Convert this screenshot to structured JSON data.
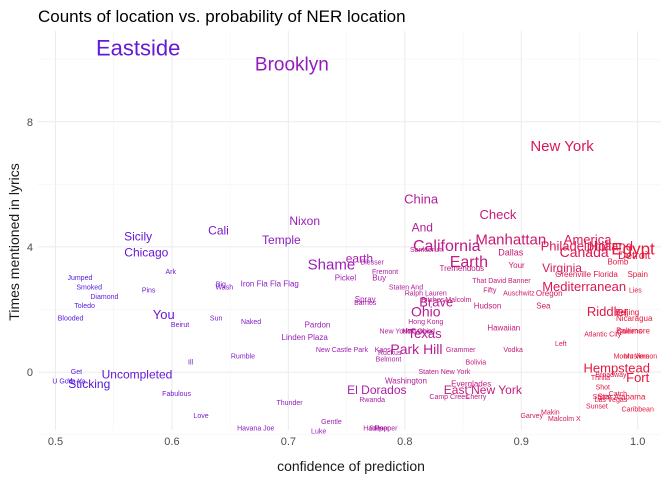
{
  "chart_data": {
    "type": "scatter",
    "title": "Counts of location vs. probability of NER location",
    "xlabel": "confidence of prediction",
    "ylabel": "Times mentioned in lyrics",
    "xlim": [
      0.485,
      1.02
    ],
    "ylim": [
      -1.85,
      10.9
    ],
    "x_ticks": [
      0.5,
      0.6,
      0.7,
      0.8,
      0.9,
      1.0
    ],
    "x_tick_labels": [
      "0.5",
      "0.6",
      "0.7",
      "0.8",
      "0.9",
      "1.0"
    ],
    "y_ticks": [
      0,
      4,
      8
    ],
    "y_tick_labels": [
      "0",
      "4",
      "8"
    ],
    "grid": true,
    "legend": "none",
    "color_scale": {
      "low": "#4b16e0",
      "mid": "#a31fb4",
      "high": "#e8173a"
    },
    "points": [
      {
        "label": "Eastside",
        "x": 0.571,
        "y": 10.3,
        "size": 22
      },
      {
        "label": "Brooklyn",
        "x": 0.703,
        "y": 9.8,
        "size": 19
      },
      {
        "label": "New York",
        "x": 0.935,
        "y": 7.2,
        "size": 15
      },
      {
        "label": "China",
        "x": 0.814,
        "y": 5.5,
        "size": 13
      },
      {
        "label": "Check",
        "x": 0.88,
        "y": 5.0,
        "size": 13
      },
      {
        "label": "Nixon",
        "x": 0.714,
        "y": 4.8,
        "size": 12
      },
      {
        "label": "Cali",
        "x": 0.64,
        "y": 4.5,
        "size": 12
      },
      {
        "label": "And",
        "x": 0.815,
        "y": 4.6,
        "size": 12
      },
      {
        "label": "Sicily",
        "x": 0.571,
        "y": 4.3,
        "size": 12
      },
      {
        "label": "Temple",
        "x": 0.694,
        "y": 4.2,
        "size": 12
      },
      {
        "label": "Manhattan",
        "x": 0.891,
        "y": 4.2,
        "size": 15
      },
      {
        "label": "America",
        "x": 0.957,
        "y": 4.2,
        "size": 13
      },
      {
        "label": "California",
        "x": 0.836,
        "y": 4.0,
        "size": 16
      },
      {
        "label": "Philadelphia",
        "x": 0.947,
        "y": 4.0,
        "size": 13
      },
      {
        "label": "Holland",
        "x": 0.977,
        "y": 4.0,
        "size": 13
      },
      {
        "label": "Egypt",
        "x": 0.996,
        "y": 3.9,
        "size": 17
      },
      {
        "label": "Canada",
        "x": 0.954,
        "y": 3.8,
        "size": 14
      },
      {
        "label": "Chicago",
        "x": 0.578,
        "y": 3.8,
        "size": 12
      },
      {
        "label": "Dallas",
        "x": 0.891,
        "y": 3.8,
        "size": 9
      },
      {
        "label": "Detroit",
        "x": 0.997,
        "y": 3.7,
        "size": 11
      },
      {
        "label": "Earth",
        "x": 0.855,
        "y": 3.5,
        "size": 16
      },
      {
        "label": "Shame",
        "x": 0.737,
        "y": 3.4,
        "size": 15
      },
      {
        "label": "earth",
        "x": 0.761,
        "y": 3.6,
        "size": 12
      },
      {
        "label": "Sanktorum",
        "x": 0.819,
        "y": 3.9,
        "size": 7
      },
      {
        "label": "Blesser",
        "x": 0.772,
        "y": 3.5,
        "size": 7
      },
      {
        "label": "Bomb",
        "x": 0.983,
        "y": 3.5,
        "size": 8
      },
      {
        "label": "Your",
        "x": 0.896,
        "y": 3.4,
        "size": 8
      },
      {
        "label": "Virginia",
        "x": 0.935,
        "y": 3.3,
        "size": 12
      },
      {
        "label": "Fremont",
        "x": 0.783,
        "y": 3.2,
        "size": 7
      },
      {
        "label": "Ark",
        "x": 0.599,
        "y": 3.2,
        "size": 7
      },
      {
        "label": "Tremendous",
        "x": 0.849,
        "y": 3.3,
        "size": 8
      },
      {
        "label": "Greenville Florida",
        "x": 0.956,
        "y": 3.1,
        "size": 8
      },
      {
        "label": "Spain",
        "x": 1.0,
        "y": 3.1,
        "size": 8
      },
      {
        "label": "Jumped",
        "x": 0.521,
        "y": 3.0,
        "size": 7
      },
      {
        "label": "Pickel",
        "x": 0.749,
        "y": 3.0,
        "size": 8
      },
      {
        "label": "Buy",
        "x": 0.778,
        "y": 3.0,
        "size": 8
      },
      {
        "label": "That David Banner",
        "x": 0.883,
        "y": 2.9,
        "size": 7
      },
      {
        "label": "Mediterranean",
        "x": 0.954,
        "y": 2.7,
        "size": 13
      },
      {
        "label": "Iron Fla Fla Flag",
        "x": 0.684,
        "y": 2.8,
        "size": 8
      },
      {
        "label": "Big",
        "x": 0.642,
        "y": 2.8,
        "size": 7
      },
      {
        "label": "Wash",
        "x": 0.645,
        "y": 2.7,
        "size": 7
      },
      {
        "label": "Staten And",
        "x": 0.801,
        "y": 2.7,
        "size": 7
      },
      {
        "label": "Smoked",
        "x": 0.529,
        "y": 2.7,
        "size": 7
      },
      {
        "label": "Pins",
        "x": 0.58,
        "y": 2.6,
        "size": 7
      },
      {
        "label": "Fifty",
        "x": 0.873,
        "y": 2.6,
        "size": 7
      },
      {
        "label": "Auschwitz",
        "x": 0.898,
        "y": 2.5,
        "size": 7
      },
      {
        "label": "Oregon",
        "x": 0.924,
        "y": 2.5,
        "size": 8
      },
      {
        "label": "Lies",
        "x": 0.998,
        "y": 2.6,
        "size": 7
      },
      {
        "label": "Ralph Lauren",
        "x": 0.818,
        "y": 2.5,
        "size": 7
      },
      {
        "label": "Diamond",
        "x": 0.542,
        "y": 2.4,
        "size": 7
      },
      {
        "label": "Spray",
        "x": 0.766,
        "y": 2.3,
        "size": 8
      },
      {
        "label": "Barnes",
        "x": 0.766,
        "y": 2.2,
        "size": 7
      },
      {
        "label": "Brave",
        "x": 0.827,
        "y": 2.2,
        "size": 13
      },
      {
        "label": "Malcolm",
        "x": 0.846,
        "y": 2.3,
        "size": 7
      },
      {
        "label": "Bitches",
        "x": 0.824,
        "y": 2.3,
        "size": 7
      },
      {
        "label": "Hudson",
        "x": 0.871,
        "y": 2.1,
        "size": 8
      },
      {
        "label": "Sea",
        "x": 0.919,
        "y": 2.1,
        "size": 8
      },
      {
        "label": "Toledo",
        "x": 0.525,
        "y": 2.1,
        "size": 7
      },
      {
        "label": "Ohio",
        "x": 0.818,
        "y": 1.9,
        "size": 14
      },
      {
        "label": "Riddler",
        "x": 0.974,
        "y": 1.9,
        "size": 13
      },
      {
        "label": "Beijing",
        "x": 0.991,
        "y": 1.9,
        "size": 8
      },
      {
        "label": "You",
        "x": 0.593,
        "y": 1.8,
        "size": 13
      },
      {
        "label": "Blooded",
        "x": 0.513,
        "y": 1.7,
        "size": 7
      },
      {
        "label": "Sun",
        "x": 0.638,
        "y": 1.7,
        "size": 7
      },
      {
        "label": "Naked",
        "x": 0.668,
        "y": 1.6,
        "size": 7
      },
      {
        "label": "Nicaragua",
        "x": 0.997,
        "y": 1.7,
        "size": 8
      },
      {
        "label": "Hong Kong",
        "x": 0.818,
        "y": 1.6,
        "size": 7
      },
      {
        "label": "Beirut",
        "x": 0.607,
        "y": 1.5,
        "size": 7
      },
      {
        "label": "Pardon",
        "x": 0.725,
        "y": 1.5,
        "size": 8
      },
      {
        "label": "Texas",
        "x": 0.817,
        "y": 1.2,
        "size": 13
      },
      {
        "label": "New York",
        "x": 0.791,
        "y": 1.3,
        "size": 7
      },
      {
        "label": "NYC",
        "x": 0.804,
        "y": 1.3,
        "size": 7
      },
      {
        "label": "Hawaiian",
        "x": 0.885,
        "y": 1.4,
        "size": 8
      },
      {
        "label": "Hollywood",
        "x": 0.812,
        "y": 1.3,
        "size": 7
      },
      {
        "label": "Ohio",
        "x": 0.817,
        "y": 1.3,
        "size": 7
      },
      {
        "label": "Atlantic City",
        "x": 0.97,
        "y": 1.2,
        "size": 7
      },
      {
        "label": "Baltimore",
        "x": 0.996,
        "y": 1.3,
        "size": 8
      },
      {
        "label": "Queens",
        "x": 0.993,
        "y": 1.3,
        "size": 7
      },
      {
        "label": "Linden Plaza",
        "x": 0.714,
        "y": 1.1,
        "size": 8
      },
      {
        "label": "Left",
        "x": 0.934,
        "y": 0.9,
        "size": 7
      },
      {
        "label": "Park Hill",
        "x": 0.81,
        "y": 0.7,
        "size": 14
      },
      {
        "label": "Grammer",
        "x": 0.848,
        "y": 0.7,
        "size": 7
      },
      {
        "label": "Vodka",
        "x": 0.893,
        "y": 0.7,
        "size": 7
      },
      {
        "label": "New Castle Park",
        "x": 0.746,
        "y": 0.7,
        "size": 7
      },
      {
        "label": "Kaos",
        "x": 0.781,
        "y": 0.7,
        "size": 7
      },
      {
        "label": "Ruckus",
        "x": 0.787,
        "y": 0.6,
        "size": 7
      },
      {
        "label": "Mount Vernon",
        "x": 0.998,
        "y": 0.5,
        "size": 7
      },
      {
        "label": "Muslims",
        "x": 0.999,
        "y": 0.5,
        "size": 7
      },
      {
        "label": "Rumble",
        "x": 0.661,
        "y": 0.5,
        "size": 7
      },
      {
        "label": "Belmont",
        "x": 0.786,
        "y": 0.4,
        "size": 7
      },
      {
        "label": "Bolivia",
        "x": 0.861,
        "y": 0.3,
        "size": 7
      },
      {
        "label": "Hempstead",
        "x": 0.982,
        "y": 0.1,
        "size": 13
      },
      {
        "label": "Ill",
        "x": 0.616,
        "y": 0.3,
        "size": 7
      },
      {
        "label": "Uncompleted",
        "x": 0.57,
        "y": -0.1,
        "size": 12
      },
      {
        "label": "Get",
        "x": 0.518,
        "y": 0.0,
        "size": 7
      },
      {
        "label": "Staten New York",
        "x": 0.834,
        "y": 0.0,
        "size": 7
      },
      {
        "label": "Broadway",
        "x": 0.977,
        "y": -0.1,
        "size": 7
      },
      {
        "label": "Fort",
        "x": 1.0,
        "y": -0.2,
        "size": 13
      },
      {
        "label": "U God",
        "x": 0.506,
        "y": -0.3,
        "size": 7
      },
      {
        "label": "Ya Ya",
        "x": 0.518,
        "y": -0.3,
        "size": 7
      },
      {
        "label": "Washington",
        "x": 0.801,
        "y": -0.3,
        "size": 8
      },
      {
        "label": "Thrilla",
        "x": 0.968,
        "y": -0.2,
        "size": 7
      },
      {
        "label": "Everglades",
        "x": 0.857,
        "y": -0.4,
        "size": 8
      },
      {
        "label": "Sticking",
        "x": 0.529,
        "y": -0.4,
        "size": 12
      },
      {
        "label": "Shot",
        "x": 0.97,
        "y": -0.5,
        "size": 7
      },
      {
        "label": "Fabulous",
        "x": 0.604,
        "y": -0.7,
        "size": 7
      },
      {
        "label": "El Dorados",
        "x": 0.776,
        "y": -0.6,
        "size": 12
      },
      {
        "label": "East New York",
        "x": 0.867,
        "y": -0.6,
        "size": 12
      },
      {
        "label": "Catch",
        "x": 0.983,
        "y": -0.7,
        "size": 7
      },
      {
        "label": "Camp Crees",
        "x": 0.838,
        "y": -0.8,
        "size": 7
      },
      {
        "label": "Cherry",
        "x": 0.861,
        "y": -0.8,
        "size": 7
      },
      {
        "label": "Star Alabama",
        "x": 0.986,
        "y": -0.8,
        "size": 8
      },
      {
        "label": "Spots",
        "x": 0.969,
        "y": -0.8,
        "size": 7
      },
      {
        "label": "Las Vegas",
        "x": 0.977,
        "y": -0.9,
        "size": 7
      },
      {
        "label": "Thunder",
        "x": 0.701,
        "y": -1.0,
        "size": 7
      },
      {
        "label": "Rwanda",
        "x": 0.772,
        "y": -0.9,
        "size": 7
      },
      {
        "label": "Sunset",
        "x": 0.965,
        "y": -1.1,
        "size": 7
      },
      {
        "label": "Caribbean",
        "x": 1.0,
        "y": -1.2,
        "size": 7
      },
      {
        "label": "Love",
        "x": 0.625,
        "y": -1.4,
        "size": 7
      },
      {
        "label": "Makin",
        "x": 0.925,
        "y": -1.3,
        "size": 7
      },
      {
        "label": "Garvey",
        "x": 0.909,
        "y": -1.4,
        "size": 7
      },
      {
        "label": "Malcolm X",
        "x": 0.937,
        "y": -1.5,
        "size": 7
      },
      {
        "label": "Gentle",
        "x": 0.737,
        "y": -1.6,
        "size": 7
      },
      {
        "label": "Havana Joe",
        "x": 0.672,
        "y": -1.8,
        "size": 7
      },
      {
        "label": "Luke",
        "x": 0.726,
        "y": -1.9,
        "size": 7
      },
      {
        "label": "Pepper",
        "x": 0.784,
        "y": -1.8,
        "size": 7
      },
      {
        "label": "Hades",
        "x": 0.773,
        "y": -1.8,
        "size": 7
      },
      {
        "label": "Sniper",
        "x": 0.778,
        "y": -1.8,
        "size": 7
      }
    ]
  }
}
